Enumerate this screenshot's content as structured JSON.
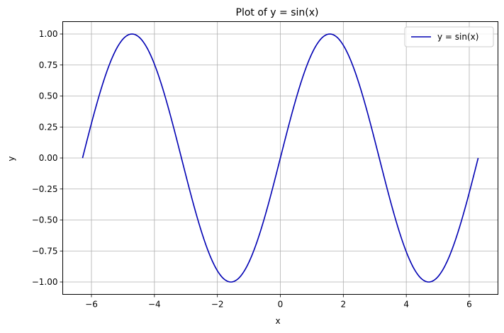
{
  "chart_data": {
    "type": "line",
    "title": "Plot of y = sin(x)",
    "xlabel": "x",
    "ylabel": "y",
    "xlim": [
      -6.912,
      6.912
    ],
    "ylim": [
      -1.1,
      1.1
    ],
    "grid": true,
    "legend_position": "top-right",
    "x_ticks": [
      -6,
      -4,
      -2,
      0,
      2,
      4,
      6
    ],
    "x_tick_labels": [
      "−6",
      "−4",
      "−2",
      "0",
      "2",
      "4",
      "6"
    ],
    "y_ticks": [
      -1.0,
      -0.75,
      -0.5,
      -0.25,
      0.0,
      0.25,
      0.5,
      0.75,
      1.0
    ],
    "y_tick_labels": [
      "−1.00",
      "−0.75",
      "−0.50",
      "−0.25",
      "0.00",
      "0.25",
      "0.50",
      "0.75",
      "1.00"
    ],
    "series": [
      {
        "name": "y = sin(x)",
        "color": "#0000b3",
        "function": "sin",
        "x_range": [
          -6.2832,
          6.2832
        ],
        "points": [
          {
            "x": -6.2832,
            "y": 0.0
          },
          {
            "x": -4.7124,
            "y": 1.0
          },
          {
            "x": -3.1416,
            "y": 0.0
          },
          {
            "x": -1.5708,
            "y": -1.0
          },
          {
            "x": 0.0,
            "y": 0.0
          },
          {
            "x": 1.5708,
            "y": 1.0
          },
          {
            "x": 3.1416,
            "y": 0.0
          },
          {
            "x": 4.7124,
            "y": -1.0
          },
          {
            "x": 6.2832,
            "y": 0.0
          }
        ]
      }
    ]
  }
}
